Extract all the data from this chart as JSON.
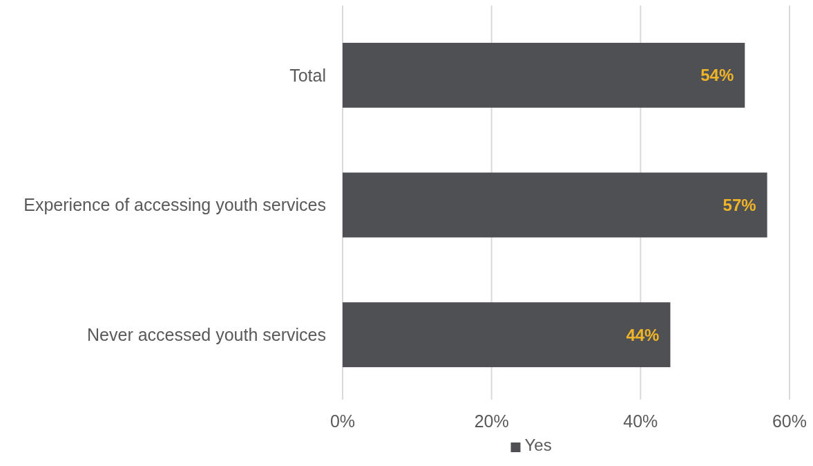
{
  "chart_data": {
    "type": "bar",
    "orientation": "horizontal",
    "categories": [
      "Total",
      "Experience of accessing youth services",
      "Never accessed youth services"
    ],
    "series": [
      {
        "name": "Yes",
        "color": "#4f5054",
        "values": [
          54,
          57,
          44
        ],
        "value_labels": [
          "54%",
          "57%",
          "44%"
        ]
      }
    ],
    "xlim": [
      0,
      60
    ],
    "xticks": [
      {
        "value": 0,
        "label": "0%"
      },
      {
        "value": 20,
        "label": "20%"
      },
      {
        "value": 40,
        "label": "40%"
      },
      {
        "value": 60,
        "label": "60%"
      }
    ],
    "grid": "x",
    "legend": "bottom"
  }
}
